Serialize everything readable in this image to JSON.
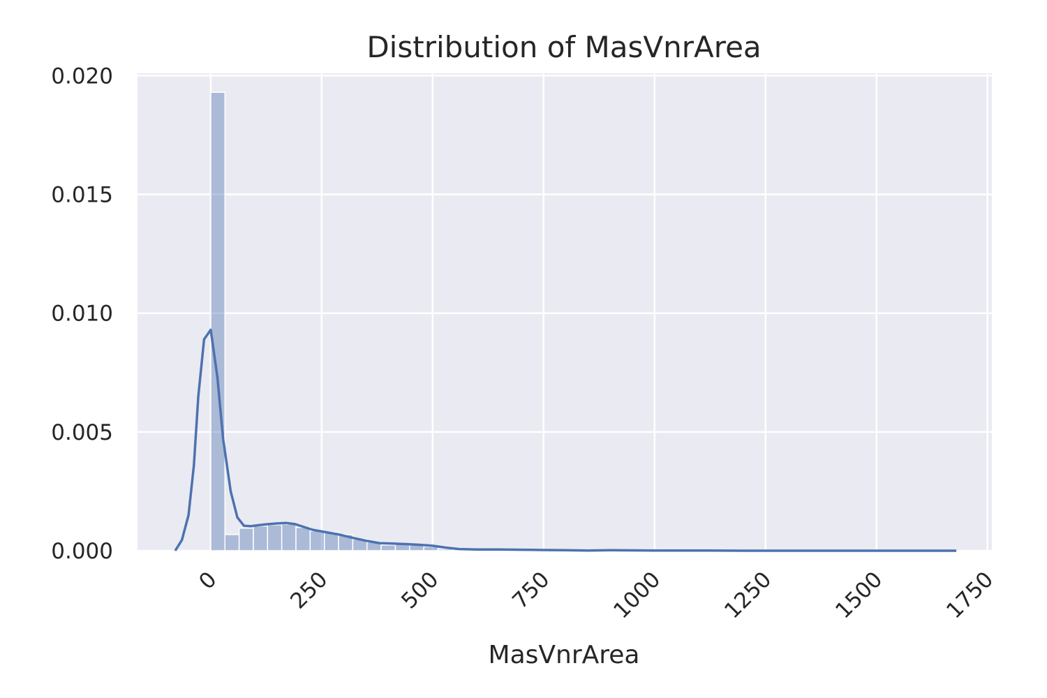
{
  "chart_data": {
    "type": "bar",
    "title": "Distribution of MasVnrArea",
    "xlabel": "MasVnrArea",
    "ylabel": "",
    "xlim": [
      -165,
      1760
    ],
    "ylim": [
      0,
      0.0201
    ],
    "x_ticks": [
      0,
      250,
      500,
      750,
      1000,
      1250,
      1500,
      1750
    ],
    "x_tick_labels": [
      "0",
      "250",
      "500",
      "750",
      "1000",
      "1250",
      "1500",
      "1750"
    ],
    "y_ticks": [
      0,
      0.005,
      0.01,
      0.015,
      0.02
    ],
    "y_tick_labels": [
      "0.000",
      "0.005",
      "0.010",
      "0.015",
      "0.020"
    ],
    "grid": true,
    "legend": "none",
    "colors": {
      "background": "#eaeaf2",
      "grid": "#ffffff",
      "bar": "#4c72b0",
      "kde": "#4c72b0",
      "text": "#262626"
    },
    "histogram": {
      "bin_width": 32,
      "bin_starts": [
        0,
        32,
        64,
        96,
        128,
        160,
        192,
        224,
        256,
        288,
        320,
        352,
        384,
        416,
        448,
        480,
        512,
        544,
        576,
        608,
        640,
        672,
        704,
        736,
        768,
        800,
        832,
        864,
        896,
        928,
        960,
        992,
        1024,
        1056,
        1088,
        1120,
        1152,
        1184,
        1216,
        1248,
        1280,
        1312,
        1344,
        1376,
        1408,
        1440,
        1472,
        1504,
        1536,
        1568,
        1600,
        1632
      ],
      "densities": [
        0.0193,
        0.00068,
        0.00095,
        0.00104,
        0.00109,
        0.00112,
        0.00098,
        0.00083,
        0.00078,
        0.00068,
        0.00048,
        0.00036,
        0.00024,
        0.00028,
        0.00024,
        0.00017,
        7e-05,
        5e-05,
        4e-05,
        5e-05,
        4e-05,
        3e-05,
        3e-05,
        2e-05,
        2e-05,
        1e-05,
        1e-05,
        1e-05,
        1e-05,
        1e-05,
        0.0,
        0.0,
        1e-05,
        1e-05,
        1e-05,
        0.0,
        0.0,
        0.0,
        0.0,
        0.0,
        0.0,
        0.0,
        0.0,
        0.0,
        0.0,
        0.0,
        0.0,
        0.0,
        0.0,
        0.0,
        0.0,
        0.0
      ]
    },
    "kde": {
      "x": [
        -80,
        -65,
        -50,
        -38,
        -28,
        -15,
        0,
        15,
        28,
        45,
        60,
        75,
        90,
        110,
        130,
        150,
        170,
        190,
        210,
        230,
        260,
        290,
        320,
        350,
        380,
        410,
        440,
        470,
        500,
        530,
        560,
        600,
        650,
        700,
        750,
        800,
        850,
        900,
        1000,
        1100,
        1200,
        1300,
        1400,
        1500,
        1600,
        1680
      ],
      "y": [
        0.0,
        0.00045,
        0.0015,
        0.0036,
        0.0065,
        0.0089,
        0.0093,
        0.0073,
        0.0047,
        0.0025,
        0.0014,
        0.00105,
        0.00103,
        0.00108,
        0.00112,
        0.00115,
        0.00117,
        0.00112,
        0.001,
        0.00088,
        0.00078,
        0.00068,
        0.00054,
        0.00042,
        0.00032,
        0.0003,
        0.00028,
        0.00025,
        0.00021,
        0.00013,
        7e-05,
        5e-05,
        5e-05,
        4e-05,
        3e-05,
        2e-05,
        1e-05,
        2e-05,
        1e-05,
        1e-05,
        0.0,
        0.0,
        0.0,
        0.0,
        0.0,
        0.0
      ]
    }
  }
}
